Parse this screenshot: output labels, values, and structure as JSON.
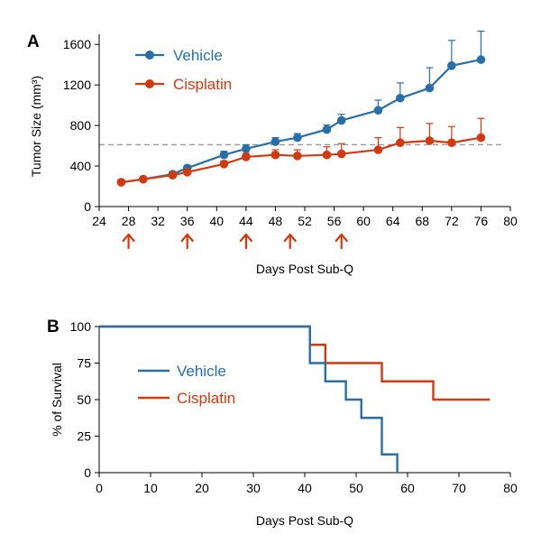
{
  "colors": {
    "vehicle": "#2a6ea6",
    "cisplatin": "#d03a12",
    "axis": "#000000",
    "threshold": "#999999",
    "arrow": "#d03a12"
  },
  "chart_data": [
    {
      "panel": "A",
      "type": "line",
      "xlabel": "Days Post Sub-Q",
      "ylabel": "Tumor Size (mm³)",
      "xlim": [
        24,
        80
      ],
      "ylim": [
        0,
        1700
      ],
      "xticks": [
        24,
        28,
        32,
        36,
        40,
        44,
        48,
        52,
        56,
        60,
        64,
        68,
        72,
        76,
        80
      ],
      "yticks": [
        0,
        400,
        800,
        1200,
        1600
      ],
      "legend_position": "top-left",
      "threshold_y": 610,
      "treatment_days": [
        28,
        36,
        44,
        50,
        57
      ],
      "series": [
        {
          "name": "Vehicle",
          "x": [
            27,
            30,
            34,
            36,
            41,
            44,
            48,
            51,
            55,
            57,
            62,
            65,
            69,
            72,
            76
          ],
          "y": [
            240,
            270,
            320,
            380,
            510,
            570,
            640,
            680,
            760,
            850,
            950,
            1070,
            1170,
            1390,
            1450
          ],
          "err": [
            15,
            15,
            20,
            25,
            35,
            40,
            40,
            40,
            45,
            60,
            100,
            150,
            200,
            250,
            280
          ]
        },
        {
          "name": "Cisplatin",
          "x": [
            27,
            30,
            34,
            36,
            41,
            44,
            48,
            51,
            55,
            57,
            62,
            65,
            69,
            72,
            76
          ],
          "y": [
            240,
            270,
            310,
            340,
            420,
            490,
            510,
            500,
            510,
            520,
            560,
            630,
            650,
            630,
            680
          ],
          "err": [
            10,
            15,
            15,
            20,
            30,
            35,
            50,
            60,
            80,
            100,
            120,
            150,
            170,
            160,
            190
          ]
        }
      ]
    },
    {
      "panel": "B",
      "type": "line",
      "step": true,
      "xlabel": "Days Post Sub-Q",
      "ylabel": "% of Survival",
      "xlim": [
        0,
        80
      ],
      "ylim": [
        0,
        100
      ],
      "xticks": [
        0,
        10,
        20,
        30,
        40,
        50,
        60,
        70,
        80
      ],
      "yticks": [
        0,
        25,
        50,
        75,
        100
      ],
      "legend_position": "left",
      "series": [
        {
          "name": "Vehicle",
          "x": [
            0,
            41,
            44,
            48,
            51,
            55,
            58
          ],
          "y": [
            100,
            75,
            62.5,
            50,
            37.5,
            12.5,
            0
          ]
        },
        {
          "name": "Cisplatin",
          "x": [
            0,
            41,
            44,
            55,
            65,
            76
          ],
          "y": [
            100,
            87.5,
            75,
            62.5,
            50,
            50
          ]
        }
      ]
    }
  ],
  "labels": {
    "panel_a": "A",
    "panel_b": "B"
  }
}
